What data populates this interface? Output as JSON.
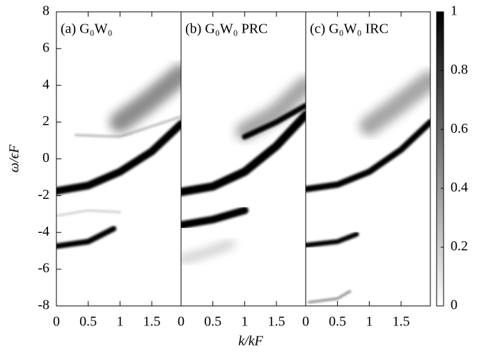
{
  "chart_data": {
    "type": "heatmap",
    "xlabel": "k/kF",
    "ylabel": "ω/ϵF",
    "panels": [
      {
        "title": "(a) G₀W₀",
        "xlim": [
          0,
          1.96
        ],
        "xticks": [
          0,
          0.5,
          1,
          1.5
        ],
        "ylim": [
          -8,
          8
        ],
        "yticks": [
          -8,
          -6,
          -4,
          -2,
          0,
          2,
          4,
          6,
          8
        ]
      },
      {
        "title": "(b) G₀W₀ PRC",
        "xlim": [
          0,
          1.96
        ],
        "xticks": [
          0,
          0.5,
          1,
          1.5
        ],
        "ylim": [
          -8,
          8
        ]
      },
      {
        "title": "(c) G₀W₀ IRC",
        "xlim": [
          0,
          1.96
        ],
        "xticks": [
          0,
          0.5,
          1,
          1.5
        ],
        "ylim": [
          -8,
          8
        ]
      }
    ],
    "colorbar": {
      "lim": [
        0,
        1
      ],
      "ticks": [
        0,
        0.2,
        0.4,
        0.6,
        0.8,
        1
      ]
    }
  }
}
